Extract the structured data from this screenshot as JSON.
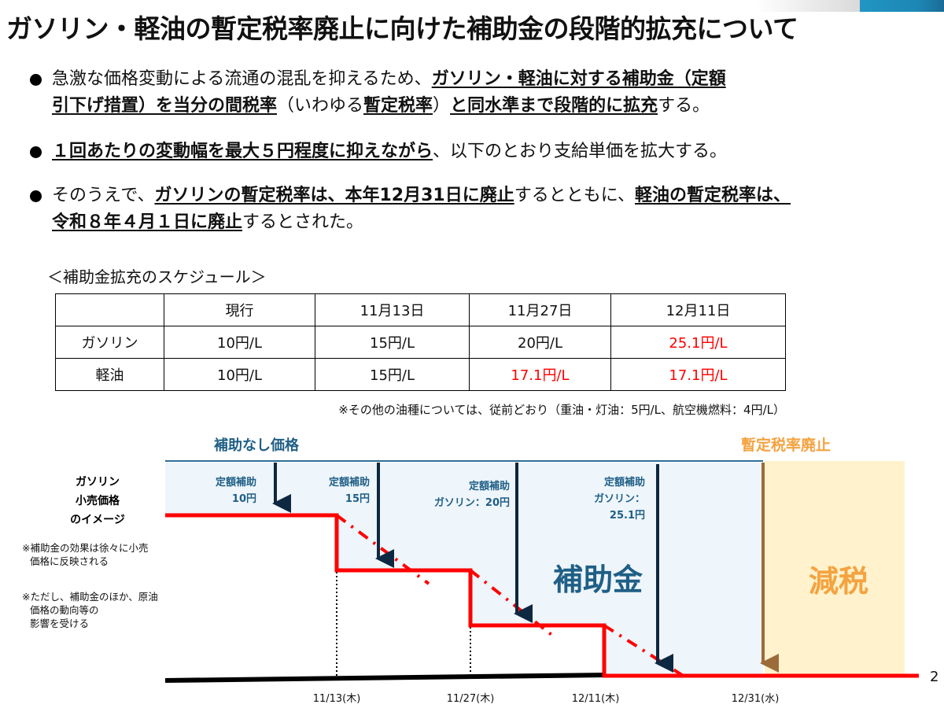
{
  "title": "ガソリン・軽油の暫定税率廃止に向けた補助金の段階的拡充について",
  "bullets": [
    {
      "s1": "急激な価格変動による流通の混乱を抑えるため、",
      "b1": "ガソリン・軽油に対する補助金（定額",
      "b1b": "引下げ措置）を当分の間税率",
      "s2": "（いわゆる",
      "b2": "暫定税率",
      "s3": "）",
      "b3": "と同水準まで段階的に拡充",
      "s4": "する。"
    },
    {
      "b1": "１回あたりの変動幅を最大５円程度に抑えながら",
      "s1": "、以下のとおり支給単価を拡大する。"
    },
    {
      "s1": "そのうえで、",
      "b1": "ガソリンの暫定税率は、本年12月31日に廃止",
      "s2": "するとともに、",
      "b2": "軽油の暫定税率は、",
      "b3": "令和８年４月１日に廃止",
      "s3": "するとされた。"
    }
  ],
  "schedule_title": "＜補助金拡充のスケジュール＞",
  "table": {
    "headers": [
      "",
      "現行",
      "11月13日",
      "11月27日",
      "12月11日"
    ],
    "rows": [
      {
        "label": "ガソリン",
        "cells": [
          "10円/L",
          "15円/L",
          "20円/L",
          "25.1円/L"
        ]
      },
      {
        "label": "軽油",
        "cells": [
          "10円/L",
          "15円/L",
          "17.1円/L",
          "17.1円/L"
        ]
      }
    ],
    "highlight_color": "#ff0000"
  },
  "footnote": "※その他の油種については、従前どおり（重油・灯油：5円/L、航空機燃料：4円/L）",
  "diagram": {
    "no_subsidy_price": "補助なし価格",
    "tax_abolition": "暫定税率廃止",
    "subsidy_area": "補助金",
    "tax_cut_area": "減税",
    "retail_label": [
      "ガソリン",
      "小売価格",
      "のイメージ"
    ],
    "notes": [
      "※補助金の効果は徐々に小売",
      "価格に反映される",
      "※ただし、補助金のほか、原油",
      "価格の動向等の",
      "影響を受ける"
    ],
    "subsidies": [
      {
        "l1": "定額補助",
        "l2": "10円"
      },
      {
        "l1": "定額補助",
        "l2": "15円"
      },
      {
        "l1": "定額補助",
        "l2": "ガソリン：20円"
      },
      {
        "l1": "定額補助",
        "l2": "ガソリン：",
        "l3": "25.1円"
      }
    ],
    "dates": [
      "11/13(木)",
      "11/27(木)",
      "12/11(木)",
      "12/31(水)"
    ],
    "colors": {
      "price_line": "#ff0000",
      "subsidy": "#1f5f86",
      "tax_cut": "#f4a340",
      "arrow": "#0d2840"
    }
  },
  "page_number": "2"
}
